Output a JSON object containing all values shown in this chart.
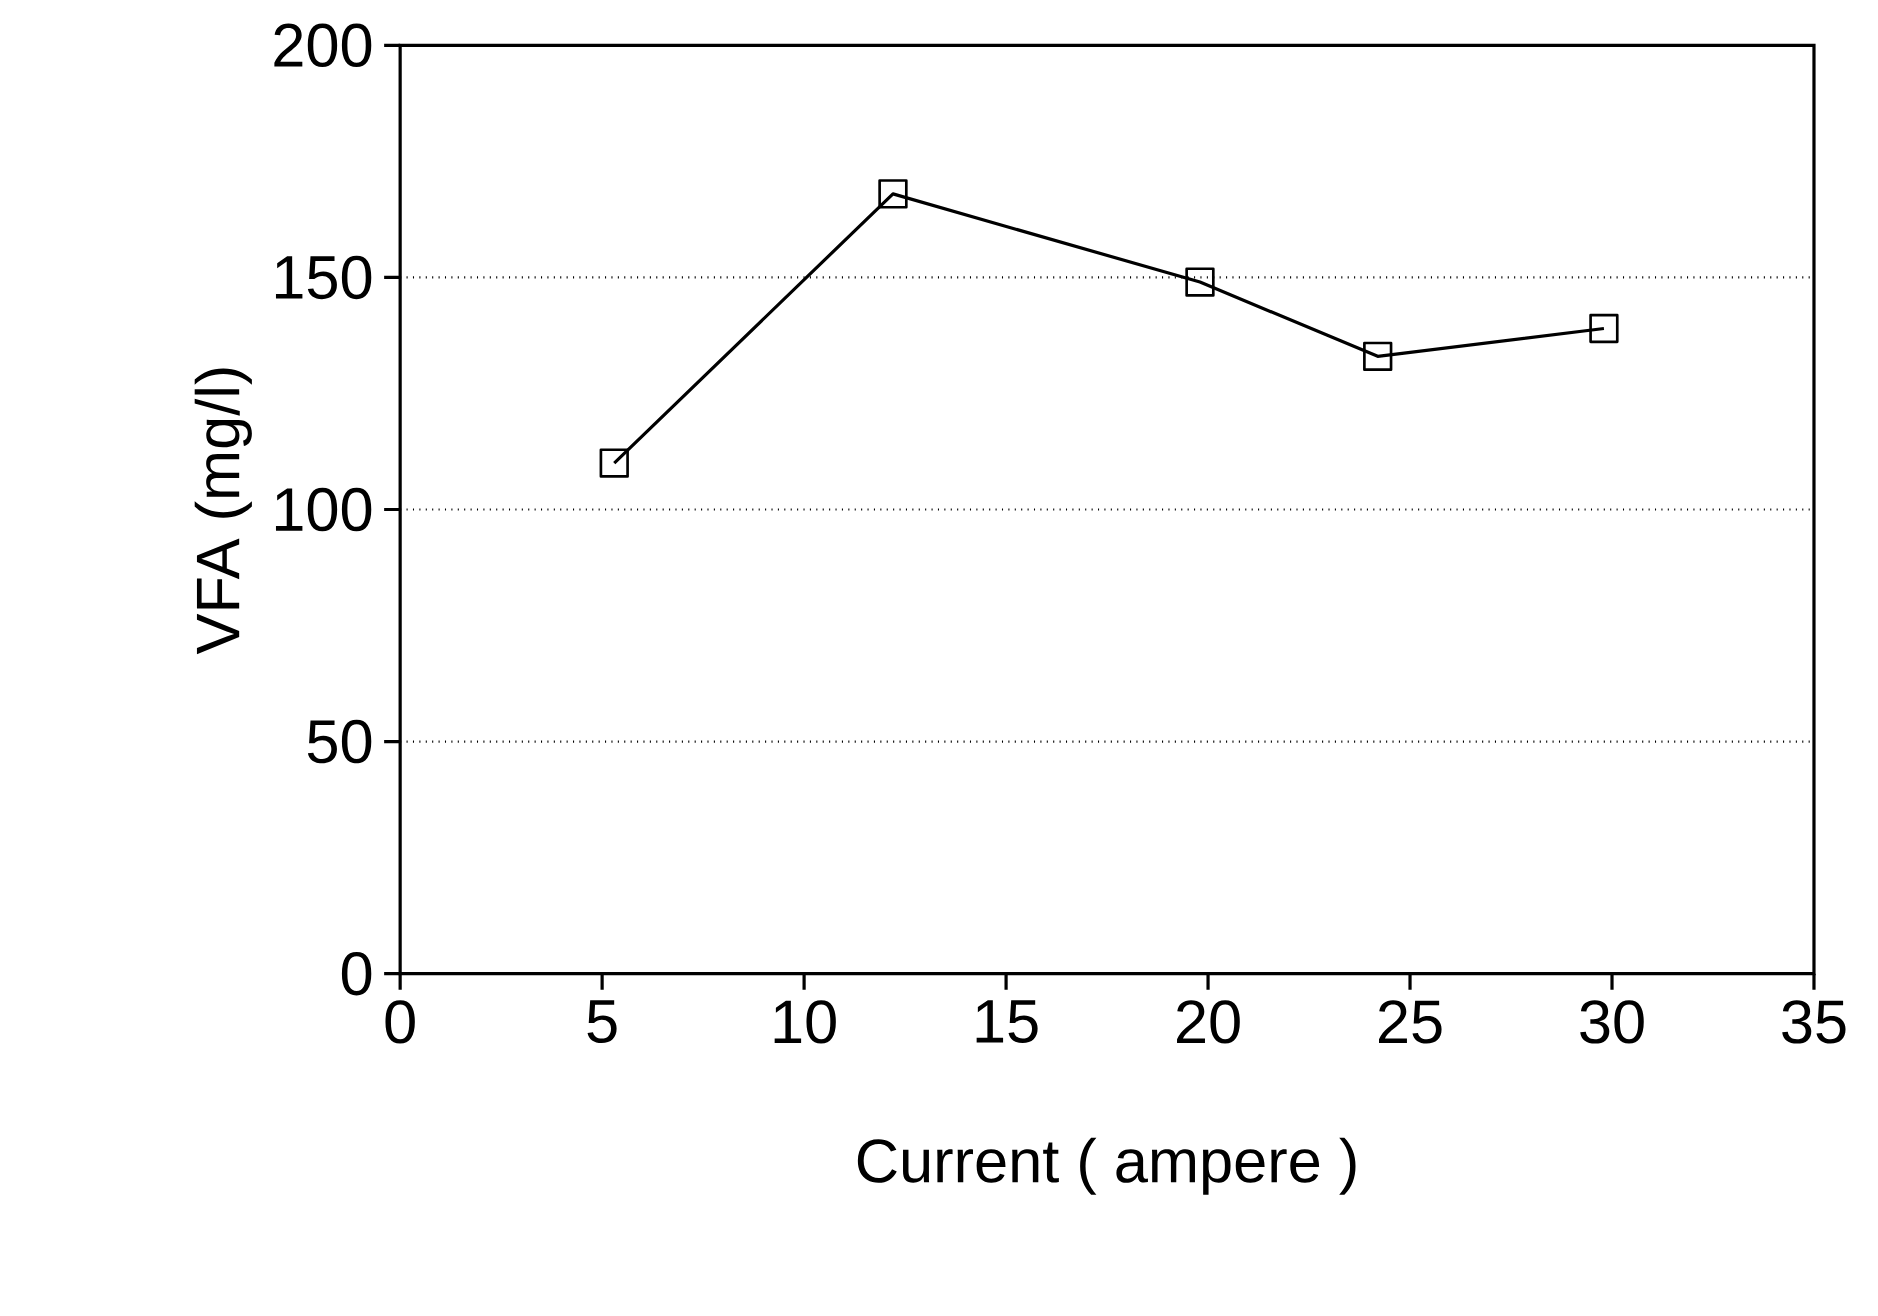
{
  "chart_data": {
    "type": "line",
    "xlabel": "Current ( ampere )",
    "ylabel": "VFA (mg/l)",
    "x": [
      5.3,
      12.2,
      19.8,
      24.2,
      29.8
    ],
    "series": [
      {
        "color": "#000000",
        "values": [
          110,
          168,
          149,
          133,
          139
        ]
      }
    ],
    "xlim": [
      0,
      35
    ],
    "xticks": [
      0,
      5,
      10,
      15,
      20,
      25,
      30,
      35
    ],
    "ylim": [
      0,
      200
    ],
    "yticks": [
      0,
      50,
      100,
      150,
      200
    ],
    "grid": "y",
    "marker": "square",
    "line_style": "solid"
  }
}
